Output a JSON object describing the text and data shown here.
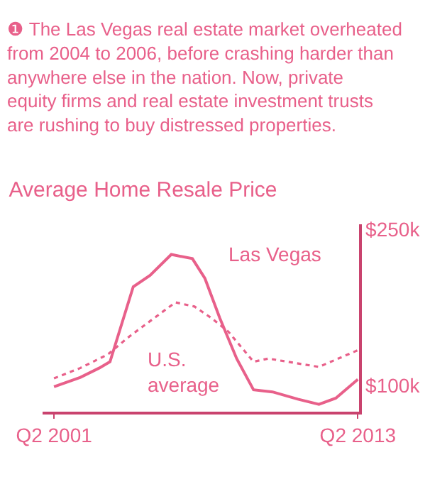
{
  "chart_data": {
    "type": "line",
    "title": "Average Home Resale Price",
    "subtitle": "❶ The Las Vegas real estate market overheated from 2004 to 2006, before crashing harder than anywhere else in the nation. Now, private equity firms and real estate investment trusts are rushing to buy distressed properties.",
    "xlim": [
      "2000-12",
      "2013-06"
    ],
    "xticks": [
      {
        "value": "2001-05-15",
        "label": "Q2 2001"
      },
      {
        "value": "2013-05-15",
        "label": "Q2 2013"
      }
    ],
    "ylim": [
      75,
      255
    ],
    "yticks": [
      {
        "value": 100,
        "label": "$100k"
      },
      {
        "value": 250,
        "label": "$250k"
      }
    ],
    "legend": false,
    "marker": "none",
    "series": [
      {
        "name": "Las Vegas",
        "color": "#e8608a",
        "line_style": "solid",
        "x": [
          "2001-05-15",
          "2002-06",
          "2003-03",
          "2003-08",
          "2004-07",
          "2005-03",
          "2006-01",
          "2006-11",
          "2007-05",
          "2007-12",
          "2008-08",
          "2009-04",
          "2010-01",
          "2011-01",
          "2011-11",
          "2012-07",
          "2013-05-15"
        ],
        "values": [
          99,
          108,
          117,
          123,
          195,
          206,
          226,
          222,
          203,
          165,
          126,
          96,
          94,
          87,
          82,
          88,
          106
        ]
      },
      {
        "name": "U.S. average",
        "color": "#e8608a",
        "line_style": "dotted",
        "x": [
          "2001-05-15",
          "2002-06",
          "2003-07",
          "2004-05",
          "2005-03",
          "2006-03",
          "2006-12",
          "2007-08",
          "2008-04",
          "2009-04",
          "2009-11",
          "2010-11",
          "2011-11",
          "2012-07",
          "2013-05-15"
        ],
        "values": [
          107,
          117,
          130,
          147,
          162,
          180,
          176,
          165,
          152,
          123,
          126,
          122,
          118,
          125,
          134
        ]
      }
    ]
  }
}
